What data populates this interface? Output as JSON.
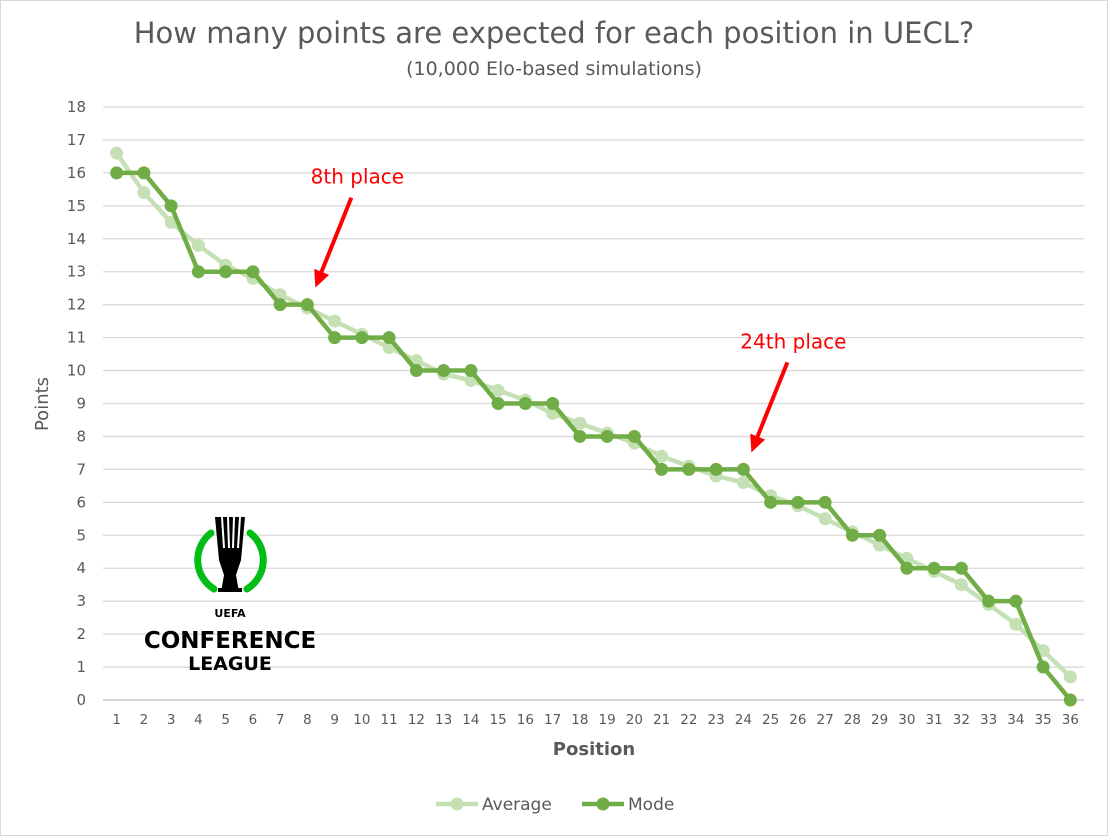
{
  "chart_data": {
    "type": "line",
    "title": "How many points are expected for each position in UECL?",
    "subtitle": "(10,000 Elo-based simulations)",
    "xlabel": "Position",
    "ylabel": "Points",
    "ylim": [
      0,
      18
    ],
    "yticks": [
      0,
      1,
      2,
      3,
      4,
      5,
      6,
      7,
      8,
      9,
      10,
      11,
      12,
      13,
      14,
      15,
      16,
      17,
      18
    ],
    "x": [
      1,
      2,
      3,
      4,
      5,
      6,
      7,
      8,
      9,
      10,
      11,
      12,
      13,
      14,
      15,
      16,
      17,
      18,
      19,
      20,
      21,
      22,
      23,
      24,
      25,
      26,
      27,
      28,
      29,
      30,
      31,
      32,
      33,
      34,
      35,
      36
    ],
    "grid": true,
    "legend_position": "bottom",
    "series": [
      {
        "name": "Average",
        "color": "#c5e0b4",
        "values": [
          16.6,
          15.4,
          14.5,
          13.8,
          13.2,
          12.8,
          12.3,
          11.9,
          11.5,
          11.1,
          10.7,
          10.3,
          9.9,
          9.7,
          9.4,
          9.1,
          8.7,
          8.4,
          8.1,
          7.8,
          7.4,
          7.1,
          6.8,
          6.6,
          6.2,
          5.9,
          5.5,
          5.1,
          4.7,
          4.3,
          3.9,
          3.5,
          2.9,
          2.3,
          1.5,
          0.7
        ]
      },
      {
        "name": "Mode",
        "color": "#70ad47",
        "values": [
          16,
          16,
          15,
          13,
          13,
          13,
          12,
          12,
          11,
          11,
          11,
          10,
          10,
          10,
          9,
          9,
          9,
          8,
          8,
          8,
          7,
          7,
          7,
          7,
          6,
          6,
          6,
          5,
          5,
          4,
          4,
          4,
          3,
          3,
          1,
          0
        ]
      }
    ],
    "annotations": [
      {
        "text": "8th place",
        "x": 8,
        "y": 12,
        "color": "#ff0000"
      },
      {
        "text": "24th place",
        "x": 24,
        "y": 7,
        "color": "#ff0000"
      }
    ]
  },
  "logo": {
    "name": "uefa-conference-league-logo",
    "top_text": "UEFA",
    "line1": "CONFERENCE",
    "line2": "LEAGUE",
    "accent_color": "#00be14"
  }
}
